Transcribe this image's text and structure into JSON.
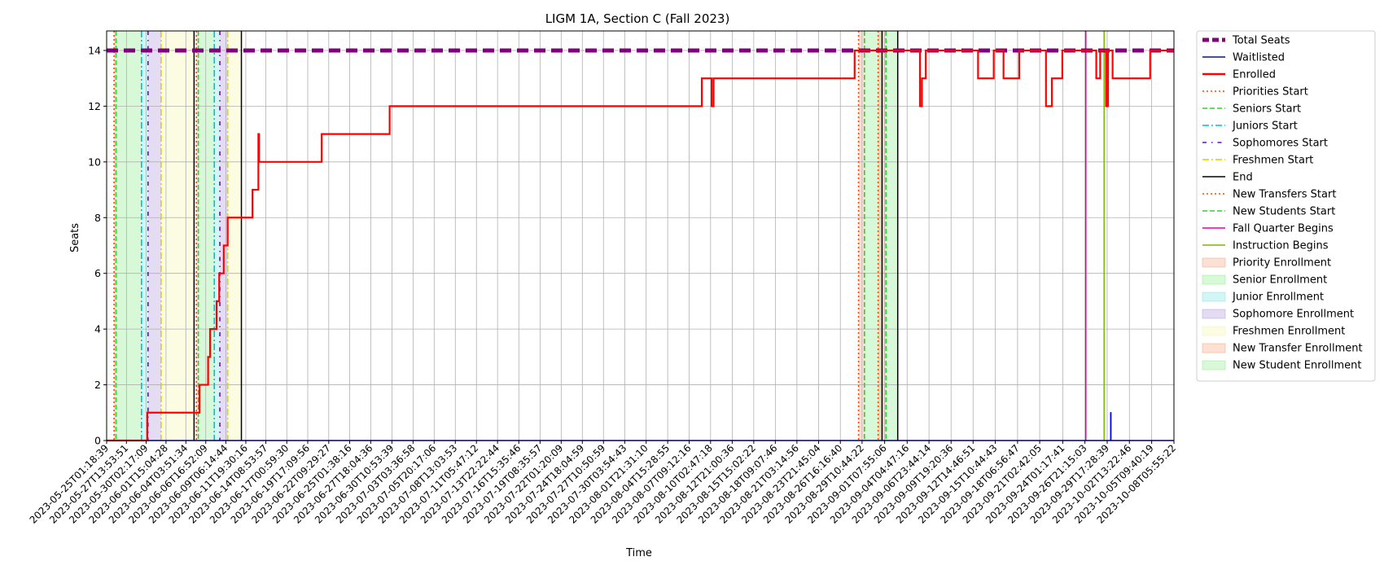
{
  "chart_data": {
    "type": "line",
    "title": "LIGM 1A, Section C (Fall 2023)",
    "xlabel": "Time",
    "ylabel": "Seats",
    "ylim": [
      0,
      14.7
    ],
    "xlim": [
      "2023-05-25T01:18:39",
      "2023-10-08T05:55:22"
    ],
    "grid": true,
    "legend_position": "outside-right",
    "yticks": [
      0,
      2,
      4,
      6,
      8,
      10,
      12,
      14
    ],
    "xticks": [
      "2023-05-25T01:18:39",
      "2023-05-27T13:53:51",
      "2023-05-30T02:17:09",
      "2023-06-01T15:04:28",
      "2023-06-04T03:51:34",
      "2023-06-06T16:52:09",
      "2023-06-09T06:14:44",
      "2023-06-11T19:30:16",
      "2023-06-14T08:53:57",
      "2023-06-17T00:59:30",
      "2023-06-19T17:09:56",
      "2023-06-22T09:29:27",
      "2023-06-25T01:38:16",
      "2023-06-27T18:04:36",
      "2023-06-30T10:53:39",
      "2023-07-03T03:36:58",
      "2023-07-05T20:17:06",
      "2023-07-08T13:03:53",
      "2023-07-11T05:47:12",
      "2023-07-13T22:22:44",
      "2023-07-16T15:35:46",
      "2023-07-19T08:35:57",
      "2023-07-22T01:20:09",
      "2023-07-24T18:04:59",
      "2023-07-27T10:50:59",
      "2023-07-30T03:54:43",
      "2023-08-01T21:31:10",
      "2023-08-04T15:28:55",
      "2023-08-07T09:12:16",
      "2023-08-10T02:47:18",
      "2023-08-12T21:00:36",
      "2023-08-15T15:02:22",
      "2023-08-18T09:07:46",
      "2023-08-21T03:14:56",
      "2023-08-23T21:45:04",
      "2023-08-26T16:16:40",
      "2023-08-29T10:44:22",
      "2023-09-01T07:55:06",
      "2023-09-04T04:47:16",
      "2023-09-06T23:44:14",
      "2023-09-09T19:20:36",
      "2023-09-12T14:46:51",
      "2023-09-15T10:44:43",
      "2023-09-18T06:56:47",
      "2023-09-21T02:42:05",
      "2023-09-24T01:17:41",
      "2023-09-26T21:15:03",
      "2023-09-29T17:28:39",
      "2023-10-02T13:22:46",
      "2023-10-05T09:40:19",
      "2023-10-08T05:55:22"
    ],
    "series": [
      {
        "name": "Total Seats",
        "color": "#800080",
        "style": "dashed-thick",
        "x": [
          "2023-05-25T01:18:39",
          "2023-10-08T05:55:22"
        ],
        "y": [
          14,
          14
        ]
      },
      {
        "name": "Waitlisted",
        "color": "#0000ff",
        "style": "solid",
        "x": [
          "2023-05-25T01:18:39",
          "2023-09-30T04:00:00",
          "2023-09-30T04:00:00",
          "2023-09-30T05:00:00",
          "2023-09-30T05:00:00",
          "2023-10-08T05:55:22"
        ],
        "y": [
          0,
          0,
          1,
          1,
          0,
          0
        ]
      },
      {
        "name": "Enrolled",
        "color": "#ff0000",
        "style": "step",
        "x": [
          "2023-05-25T01:18:39",
          "2023-05-29T12:00:00",
          "2023-05-30T06:00:00",
          "2023-05-30T06:00:00",
          "2023-06-05T22:00:00",
          "2023-06-06T02:00:00",
          "2023-06-06T12:00:00",
          "2023-06-07T00:00:00",
          "2023-06-07T06:00:00",
          "2023-06-07T18:00:00",
          "2023-06-08T02:00:00",
          "2023-06-08T10:00:00",
          "2023-06-09T00:00:00",
          "2023-06-09T12:00:00",
          "2023-06-12T16:00:00",
          "2023-06-13T10:00:00",
          "2023-06-13T10:00:00",
          "2023-06-13T12:00:00",
          "2023-06-21T12:00:00",
          "2023-06-30T04:00:00",
          "2023-08-09T00:00:00",
          "2023-08-10T06:00:00",
          "2023-08-10T12:00:00",
          "2023-08-28T12:00:00",
          "2023-09-05T20:00:00",
          "2023-09-06T02:00:00",
          "2023-09-06T14:00:00",
          "2023-09-06T22:00:00",
          "2023-09-13T06:00:00",
          "2023-09-15T06:00:00",
          "2023-09-16T12:00:00",
          "2023-09-18T12:00:00",
          "2023-09-19T04:00:00",
          "2023-09-21T22:00:00",
          "2023-09-22T16:00:00",
          "2023-09-24T00:00:00",
          "2023-09-28T08:00:00",
          "2023-09-28T20:00:00",
          "2023-09-29T14:00:00",
          "2023-09-29T20:00:00",
          "2023-09-30T10:00:00",
          "2023-10-05T05:00:00",
          "2023-10-08T05:55:22"
        ],
        "y": [
          0,
          0,
          1,
          1,
          2,
          2,
          2,
          3,
          4,
          4,
          5,
          6,
          7,
          8,
          9,
          10,
          11,
          10,
          11,
          12,
          13,
          12,
          13,
          14,
          12,
          13,
          14,
          14,
          13,
          14,
          13,
          14,
          14,
          12,
          13,
          14,
          13,
          14,
          12,
          14,
          13,
          14,
          14
        ]
      }
    ],
    "event_lines": [
      {
        "name": "Priorities Start",
        "color": "#ff4500",
        "style": "dotted",
        "x": [
          "2023-05-26T00:00:00",
          "2023-06-05T12:00:00"
        ]
      },
      {
        "name": "Seniors Start",
        "color": "#32cd32",
        "style": "dashed",
        "x": [
          "2023-05-26T06:00:00",
          "2023-06-05T18:00:00"
        ]
      },
      {
        "name": "Juniors Start",
        "color": "#00bfcf",
        "style": "dashdot",
        "x": [
          "2023-05-29T12:00:00",
          "2023-06-07T19:00:00"
        ]
      },
      {
        "name": "Sophomores Start",
        "color": "#6a0dad",
        "style": "dashdot-sparse",
        "x": [
          "2023-05-30T08:00:00",
          "2023-06-08T12:00:00"
        ]
      },
      {
        "name": "Freshmen Start",
        "color": "#d4d400",
        "style": "dashdot",
        "x": [
          "2023-06-01T00:00:00",
          "2023-06-09T12:00:00"
        ]
      },
      {
        "name": "End",
        "color": "#000000",
        "style": "solid",
        "x": [
          "2023-06-05T05:00:00",
          "2023-06-11T06:00:00",
          "2023-09-01T00:00:00",
          "2023-09-03T00:00:00"
        ]
      },
      {
        "name": "New Transfers Start",
        "color": "#ff4500",
        "style": "dotted",
        "x": [
          "2023-08-29T00:00:00",
          "2023-08-31T12:00:00"
        ]
      },
      {
        "name": "New Students Start",
        "color": "#32cd32",
        "style": "dashed",
        "x": [
          "2023-08-29T18:00:00",
          "2023-09-01T12:00:00"
        ]
      },
      {
        "name": "Fall Quarter Begins",
        "color": "#e000a0",
        "style": "solid",
        "x": [
          "2023-09-27T00:00:00"
        ]
      },
      {
        "name": "Instruction Begins",
        "color": "#7cb800",
        "style": "solid",
        "x": [
          "2023-09-29T08:00:00"
        ]
      }
    ],
    "shaded_periods": [
      {
        "name": "Priority Enrollment",
        "color": "#f4a582",
        "start": "2023-05-26T00:00:00",
        "end": "2023-05-26T06:00:00"
      },
      {
        "name": "Senior Enrollment",
        "color": "#90ee90",
        "start": "2023-05-26T06:00:00",
        "end": "2023-05-29T12:00:00"
      },
      {
        "name": "Junior Enrollment",
        "color": "#7fe5e5",
        "start": "2023-05-29T12:00:00",
        "end": "2023-05-30T08:00:00"
      },
      {
        "name": "Sophomore Enrollment",
        "color": "#b19cd9",
        "start": "2023-05-30T08:00:00",
        "end": "2023-06-01T00:00:00"
      },
      {
        "name": "Freshmen Enrollment",
        "color": "#f5f5b0",
        "start": "2023-06-01T00:00:00",
        "end": "2023-06-05T05:00:00"
      },
      {
        "name": "Priority Enrollment",
        "color": "#f4a582",
        "start": "2023-06-05T12:00:00",
        "end": "2023-06-05T18:00:00"
      },
      {
        "name": "Senior Enrollment",
        "color": "#90ee90",
        "start": "2023-06-05T18:00:00",
        "end": "2023-06-07T19:00:00"
      },
      {
        "name": "Junior Enrollment",
        "color": "#7fe5e5",
        "start": "2023-06-07T19:00:00",
        "end": "2023-06-08T12:00:00"
      },
      {
        "name": "Sophomore Enrollment",
        "color": "#b19cd9",
        "start": "2023-06-08T12:00:00",
        "end": "2023-06-09T12:00:00"
      },
      {
        "name": "Freshmen Enrollment",
        "color": "#f5f5b0",
        "start": "2023-06-09T12:00:00",
        "end": "2023-06-11T06:00:00"
      },
      {
        "name": "New Transfer Enrollment",
        "color": "#f4a582",
        "start": "2023-08-29T00:00:00",
        "end": "2023-08-29T18:00:00"
      },
      {
        "name": "New Student Enrollment",
        "color": "#90ee90",
        "start": "2023-08-29T18:00:00",
        "end": "2023-09-01T00:00:00"
      },
      {
        "name": "New Transfer Enrollment",
        "color": "#f4a582",
        "start": "2023-08-31T12:00:00",
        "end": "2023-09-01T12:00:00"
      },
      {
        "name": "New Student Enrollment",
        "color": "#90ee90",
        "start": "2023-09-01T12:00:00",
        "end": "2023-09-03T00:00:00"
      }
    ],
    "legend": [
      {
        "label": "Total Seats",
        "kind": "line",
        "color": "#800080",
        "style": "dashed-thick"
      },
      {
        "label": "Waitlisted",
        "kind": "line",
        "color": "#0000ff",
        "style": "solid"
      },
      {
        "label": "Enrolled",
        "kind": "line",
        "color": "#ff0000",
        "style": "solid-thick"
      },
      {
        "label": "Priorities Start",
        "kind": "line",
        "color": "#ff4500",
        "style": "dotted"
      },
      {
        "label": "Seniors Start",
        "kind": "line",
        "color": "#32cd32",
        "style": "dashed"
      },
      {
        "label": "Juniors Start",
        "kind": "line",
        "color": "#00bfcf",
        "style": "dashdot"
      },
      {
        "label": "Sophomores Start",
        "kind": "line",
        "color": "#6a0dad",
        "style": "dashdot-sparse"
      },
      {
        "label": "Freshmen Start",
        "kind": "line",
        "color": "#d4d400",
        "style": "dashdot"
      },
      {
        "label": "End",
        "kind": "line",
        "color": "#000000",
        "style": "solid"
      },
      {
        "label": "New Transfers Start",
        "kind": "line",
        "color": "#ff4500",
        "style": "dotted"
      },
      {
        "label": "New Students Start",
        "kind": "line",
        "color": "#32cd32",
        "style": "dashed"
      },
      {
        "label": "Fall Quarter Begins",
        "kind": "line",
        "color": "#e000a0",
        "style": "solid"
      },
      {
        "label": "Instruction Begins",
        "kind": "line",
        "color": "#7cb800",
        "style": "solid"
      },
      {
        "label": "Priority Enrollment",
        "kind": "patch",
        "color": "#f4a582"
      },
      {
        "label": "Senior Enrollment",
        "kind": "patch",
        "color": "#90ee90"
      },
      {
        "label": "Junior Enrollment",
        "kind": "patch",
        "color": "#7fe5e5"
      },
      {
        "label": "Sophomore Enrollment",
        "kind": "patch",
        "color": "#b19cd9"
      },
      {
        "label": "Freshmen Enrollment",
        "kind": "patch",
        "color": "#f5f5b0"
      },
      {
        "label": "New Transfer Enrollment",
        "kind": "patch",
        "color": "#f4a582"
      },
      {
        "label": "New Student Enrollment",
        "kind": "patch",
        "color": "#90ee90"
      }
    ]
  }
}
